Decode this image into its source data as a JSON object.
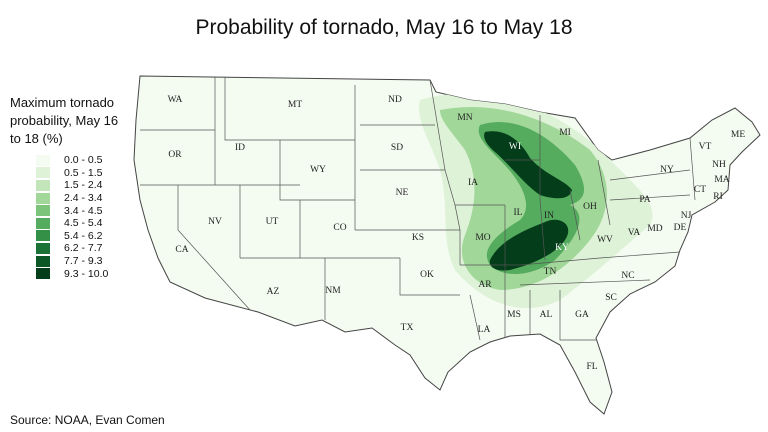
{
  "title": "Probability of tornado, May 16 to May 18",
  "legend": {
    "title": "Maximum tornado probability, May 16 to 18 (%)",
    "items": [
      {
        "label": "0.0 - 0.5",
        "color": "#f4fbf1"
      },
      {
        "label": "0.5 - 1.5",
        "color": "#def2d8"
      },
      {
        "label": "1.5 - 2.4",
        "color": "#c2e6ba"
      },
      {
        "label": "2.4 - 3.4",
        "color": "#a2d79a"
      },
      {
        "label": "3.4 - 4.5",
        "color": "#7cc47a"
      },
      {
        "label": "4.5 - 5.4",
        "color": "#55ac5e"
      },
      {
        "label": "5.4 - 6.2",
        "color": "#348f47"
      },
      {
        "label": "6.2 - 7.7",
        "color": "#1a7236"
      },
      {
        "label": "7.7 - 9.3",
        "color": "#0b5726"
      },
      {
        "label": "9.3 - 10.0",
        "color": "#043d19"
      }
    ]
  },
  "states": [
    "WA",
    "MT",
    "ND",
    "MN",
    "OR",
    "ID",
    "WY",
    "SD",
    "WI",
    "MI",
    "NY",
    "VT",
    "NH",
    "ME",
    "MA",
    "CT",
    "RI",
    "PA",
    "NJ",
    "DE",
    "MD",
    "NV",
    "UT",
    "CO",
    "NE",
    "IA",
    "IL",
    "IN",
    "OH",
    "KS",
    "MO",
    "KY",
    "WV",
    "VA",
    "CA",
    "AZ",
    "NM",
    "OK",
    "AR",
    "TN",
    "NC",
    "SC",
    "TX",
    "LA",
    "MS",
    "AL",
    "GA",
    "FL"
  ],
  "source": "Source: NOAA, Evan Comen"
}
